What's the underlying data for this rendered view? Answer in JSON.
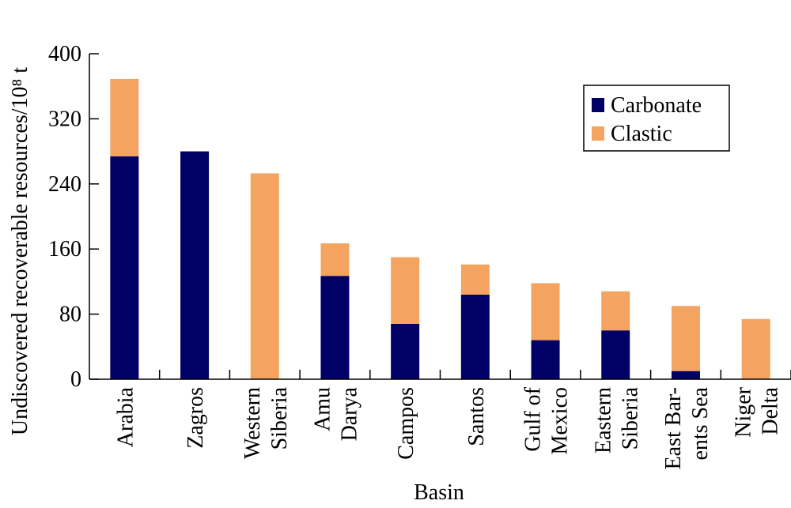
{
  "chart_data": {
    "type": "bar",
    "stacked": true,
    "xlabel": "Basin",
    "ylabel": "Undiscovered recoverable resources/10⁸ t",
    "ylim": [
      0,
      400
    ],
    "yticks": [
      0,
      80,
      160,
      240,
      320,
      400
    ],
    "grid": false,
    "legend_position": "top-right",
    "categories": [
      [
        "Arabia"
      ],
      [
        "Zagros"
      ],
      [
        "Western",
        "Siberia"
      ],
      [
        "Amu",
        "Darya"
      ],
      [
        "Campos"
      ],
      [
        "Santos"
      ],
      [
        "Gulf of",
        "Mexico"
      ],
      [
        "Eastern",
        "Siberia"
      ],
      [
        "East Bar-",
        "ents Sea"
      ],
      [
        "Niger",
        "Delta"
      ]
    ],
    "series": [
      {
        "name": "Carbonate",
        "color": "#000066",
        "values": [
          274,
          280,
          0,
          127,
          68,
          104,
          48,
          60,
          10,
          0
        ]
      },
      {
        "name": "Clastic",
        "color": "#F4A460",
        "values": [
          95,
          0,
          253,
          40,
          82,
          37,
          70,
          48,
          80,
          74
        ]
      }
    ]
  }
}
